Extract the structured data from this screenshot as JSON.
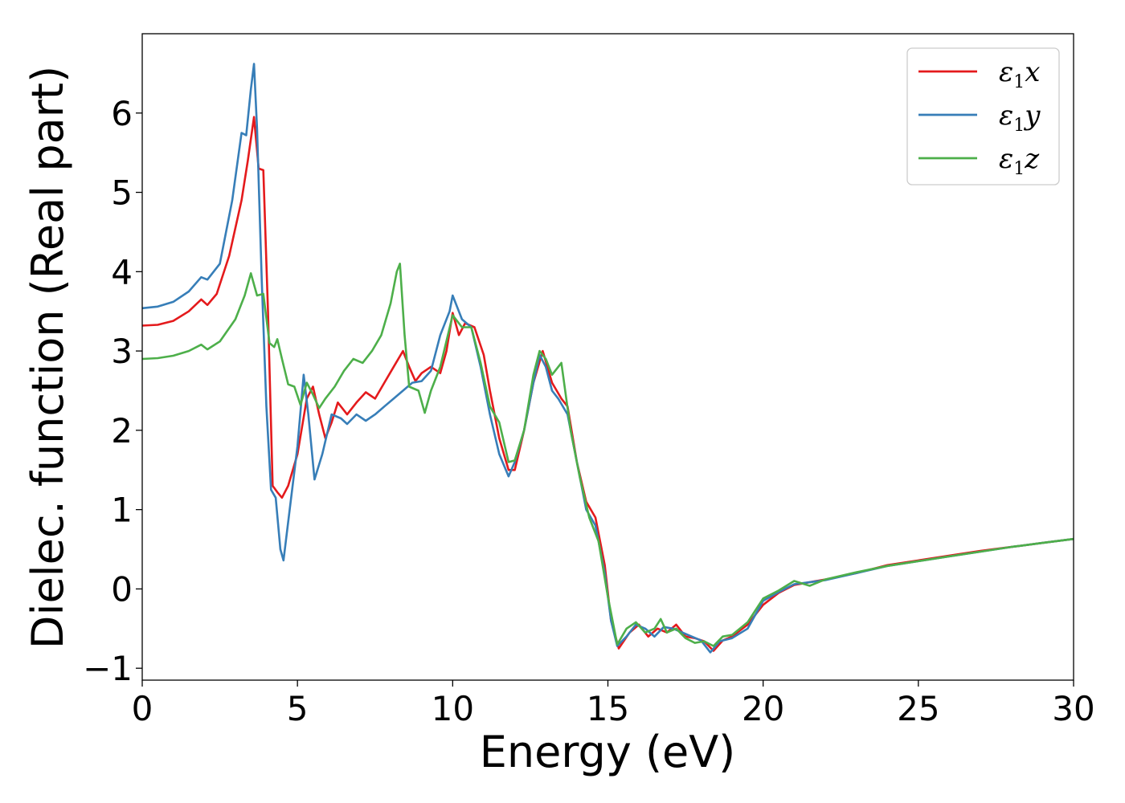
{
  "chart_data": {
    "type": "line",
    "xlabel": "Energy (eV)",
    "ylabel": "Dielec. function (Real part)",
    "xlim": [
      0,
      30
    ],
    "ylim": [
      -1.15,
      7.0
    ],
    "xticks": [
      0,
      5,
      10,
      15,
      20,
      25,
      30
    ],
    "xtick_labels": [
      "0",
      "5",
      "10",
      "15",
      "20",
      "25",
      "30"
    ],
    "yticks": [
      -1,
      0,
      1,
      2,
      3,
      4,
      5,
      6
    ],
    "ytick_labels": [
      "−1",
      "0",
      "1",
      "2",
      "3",
      "4",
      "5",
      "6"
    ],
    "grid": false,
    "legend_position": "top-right",
    "series": [
      {
        "name": "ε1x",
        "legend_symbol": "ε",
        "legend_sub": "1",
        "legend_suffix": "x",
        "color": "#e41a1c",
        "points": [
          [
            0,
            3.32
          ],
          [
            0.5,
            3.33
          ],
          [
            1.0,
            3.38
          ],
          [
            1.5,
            3.5
          ],
          [
            1.9,
            3.65
          ],
          [
            2.1,
            3.58
          ],
          [
            2.4,
            3.72
          ],
          [
            2.8,
            4.2
          ],
          [
            3.2,
            4.9
          ],
          [
            3.4,
            5.4
          ],
          [
            3.6,
            5.95
          ],
          [
            3.75,
            5.3
          ],
          [
            3.9,
            5.28
          ],
          [
            4.05,
            3.5
          ],
          [
            4.2,
            1.3
          ],
          [
            4.35,
            1.22
          ],
          [
            4.5,
            1.15
          ],
          [
            4.7,
            1.3
          ],
          [
            5.0,
            1.7
          ],
          [
            5.3,
            2.4
          ],
          [
            5.5,
            2.55
          ],
          [
            5.7,
            2.2
          ],
          [
            5.9,
            1.9
          ],
          [
            6.1,
            2.1
          ],
          [
            6.3,
            2.35
          ],
          [
            6.6,
            2.2
          ],
          [
            6.9,
            2.35
          ],
          [
            7.2,
            2.48
          ],
          [
            7.5,
            2.4
          ],
          [
            7.8,
            2.6
          ],
          [
            8.1,
            2.8
          ],
          [
            8.4,
            3.0
          ],
          [
            8.6,
            2.8
          ],
          [
            8.8,
            2.62
          ],
          [
            9.0,
            2.72
          ],
          [
            9.3,
            2.8
          ],
          [
            9.6,
            2.72
          ],
          [
            9.8,
            3.0
          ],
          [
            10.0,
            3.48
          ],
          [
            10.2,
            3.2
          ],
          [
            10.4,
            3.35
          ],
          [
            10.7,
            3.3
          ],
          [
            11.0,
            2.95
          ],
          [
            11.2,
            2.5
          ],
          [
            11.5,
            1.9
          ],
          [
            11.8,
            1.5
          ],
          [
            12.0,
            1.5
          ],
          [
            12.3,
            2.0
          ],
          [
            12.6,
            2.6
          ],
          [
            12.9,
            3.0
          ],
          [
            13.2,
            2.6
          ],
          [
            13.5,
            2.4
          ],
          [
            13.7,
            2.3
          ],
          [
            14.0,
            1.6
          ],
          [
            14.3,
            1.1
          ],
          [
            14.6,
            0.9
          ],
          [
            14.9,
            0.3
          ],
          [
            15.1,
            -0.4
          ],
          [
            15.35,
            -0.75
          ],
          [
            15.7,
            -0.55
          ],
          [
            16.0,
            -0.45
          ],
          [
            16.3,
            -0.6
          ],
          [
            16.6,
            -0.5
          ],
          [
            16.9,
            -0.55
          ],
          [
            17.2,
            -0.45
          ],
          [
            17.5,
            -0.6
          ],
          [
            17.8,
            -0.62
          ],
          [
            18.1,
            -0.66
          ],
          [
            18.4,
            -0.78
          ],
          [
            18.7,
            -0.65
          ],
          [
            19.0,
            -0.6
          ],
          [
            19.5,
            -0.45
          ],
          [
            20.0,
            -0.2
          ],
          [
            20.5,
            -0.05
          ],
          [
            21.0,
            0.05
          ],
          [
            22.0,
            0.12
          ],
          [
            23.0,
            0.2
          ],
          [
            24.0,
            0.3
          ],
          [
            25.0,
            0.36
          ],
          [
            26.0,
            0.42
          ],
          [
            27.0,
            0.48
          ],
          [
            28.0,
            0.53
          ],
          [
            29.0,
            0.58
          ],
          [
            30.0,
            0.63
          ]
        ]
      },
      {
        "name": "ε1y",
        "legend_symbol": "ε",
        "legend_sub": "1",
        "legend_suffix": "y",
        "color": "#377eb8",
        "points": [
          [
            0,
            3.54
          ],
          [
            0.5,
            3.56
          ],
          [
            1.0,
            3.62
          ],
          [
            1.5,
            3.75
          ],
          [
            1.9,
            3.93
          ],
          [
            2.1,
            3.9
          ],
          [
            2.5,
            4.1
          ],
          [
            2.9,
            4.9
          ],
          [
            3.2,
            5.75
          ],
          [
            3.35,
            5.72
          ],
          [
            3.5,
            6.3
          ],
          [
            3.6,
            6.62
          ],
          [
            3.7,
            5.8
          ],
          [
            3.85,
            3.9
          ],
          [
            4.0,
            2.3
          ],
          [
            4.15,
            1.25
          ],
          [
            4.3,
            1.15
          ],
          [
            4.45,
            0.5
          ],
          [
            4.55,
            0.36
          ],
          [
            4.75,
            1.0
          ],
          [
            5.0,
            1.8
          ],
          [
            5.2,
            2.7
          ],
          [
            5.35,
            2.2
          ],
          [
            5.55,
            1.38
          ],
          [
            5.8,
            1.7
          ],
          [
            6.1,
            2.2
          ],
          [
            6.4,
            2.15
          ],
          [
            6.6,
            2.08
          ],
          [
            6.9,
            2.2
          ],
          [
            7.2,
            2.12
          ],
          [
            7.5,
            2.2
          ],
          [
            7.8,
            2.3
          ],
          [
            8.1,
            2.4
          ],
          [
            8.4,
            2.5
          ],
          [
            8.7,
            2.6
          ],
          [
            9.0,
            2.62
          ],
          [
            9.3,
            2.75
          ],
          [
            9.6,
            3.2
          ],
          [
            9.9,
            3.5
          ],
          [
            10.0,
            3.7
          ],
          [
            10.3,
            3.4
          ],
          [
            10.6,
            3.3
          ],
          [
            10.9,
            2.8
          ],
          [
            11.2,
            2.2
          ],
          [
            11.5,
            1.7
          ],
          [
            11.8,
            1.42
          ],
          [
            12.0,
            1.6
          ],
          [
            12.3,
            2.0
          ],
          [
            12.6,
            2.6
          ],
          [
            12.8,
            2.95
          ],
          [
            13.0,
            2.8
          ],
          [
            13.2,
            2.5
          ],
          [
            13.4,
            2.4
          ],
          [
            13.7,
            2.2
          ],
          [
            14.0,
            1.6
          ],
          [
            14.3,
            1.0
          ],
          [
            14.6,
            0.8
          ],
          [
            14.9,
            0.2
          ],
          [
            15.1,
            -0.4
          ],
          [
            15.3,
            -0.72
          ],
          [
            15.6,
            -0.6
          ],
          [
            15.9,
            -0.45
          ],
          [
            16.2,
            -0.5
          ],
          [
            16.5,
            -0.6
          ],
          [
            16.8,
            -0.48
          ],
          [
            17.1,
            -0.5
          ],
          [
            17.4,
            -0.55
          ],
          [
            17.7,
            -0.6
          ],
          [
            18.0,
            -0.65
          ],
          [
            18.3,
            -0.8
          ],
          [
            18.6,
            -0.66
          ],
          [
            19.0,
            -0.62
          ],
          [
            19.5,
            -0.5
          ],
          [
            20.0,
            -0.15
          ],
          [
            20.5,
            -0.04
          ],
          [
            21.0,
            0.06
          ],
          [
            22.0,
            0.11
          ],
          [
            23.0,
            0.2
          ],
          [
            24.0,
            0.29
          ],
          [
            25.0,
            0.35
          ],
          [
            26.0,
            0.41
          ],
          [
            27.0,
            0.47
          ],
          [
            28.0,
            0.53
          ],
          [
            29.0,
            0.58
          ],
          [
            30.0,
            0.63
          ]
        ]
      },
      {
        "name": "ε1z",
        "legend_symbol": "ε",
        "legend_sub": "1",
        "legend_suffix": "z",
        "color": "#4daf4a",
        "points": [
          [
            0,
            2.9
          ],
          [
            0.5,
            2.91
          ],
          [
            1.0,
            2.94
          ],
          [
            1.5,
            3.0
          ],
          [
            1.9,
            3.08
          ],
          [
            2.1,
            3.02
          ],
          [
            2.5,
            3.12
          ],
          [
            3.0,
            3.4
          ],
          [
            3.3,
            3.7
          ],
          [
            3.5,
            3.98
          ],
          [
            3.7,
            3.7
          ],
          [
            3.9,
            3.72
          ],
          [
            4.1,
            3.1
          ],
          [
            4.25,
            3.05
          ],
          [
            4.35,
            3.15
          ],
          [
            4.5,
            2.9
          ],
          [
            4.7,
            2.58
          ],
          [
            4.9,
            2.55
          ],
          [
            5.1,
            2.32
          ],
          [
            5.3,
            2.6
          ],
          [
            5.5,
            2.45
          ],
          [
            5.7,
            2.28
          ],
          [
            5.9,
            2.4
          ],
          [
            6.2,
            2.55
          ],
          [
            6.5,
            2.75
          ],
          [
            6.8,
            2.9
          ],
          [
            7.1,
            2.85
          ],
          [
            7.4,
            3.0
          ],
          [
            7.7,
            3.2
          ],
          [
            8.0,
            3.6
          ],
          [
            8.2,
            4.0
          ],
          [
            8.3,
            4.1
          ],
          [
            8.45,
            3.2
          ],
          [
            8.6,
            2.55
          ],
          [
            8.9,
            2.5
          ],
          [
            9.1,
            2.22
          ],
          [
            9.3,
            2.5
          ],
          [
            9.6,
            2.8
          ],
          [
            10.0,
            3.45
          ],
          [
            10.3,
            3.3
          ],
          [
            10.6,
            3.3
          ],
          [
            10.9,
            2.85
          ],
          [
            11.2,
            2.3
          ],
          [
            11.5,
            2.1
          ],
          [
            11.8,
            1.6
          ],
          [
            12.0,
            1.62
          ],
          [
            12.3,
            2.0
          ],
          [
            12.6,
            2.7
          ],
          [
            12.8,
            3.0
          ],
          [
            13.0,
            2.9
          ],
          [
            13.2,
            2.7
          ],
          [
            13.5,
            2.85
          ],
          [
            13.8,
            2.0
          ],
          [
            14.1,
            1.4
          ],
          [
            14.4,
            0.9
          ],
          [
            14.7,
            0.6
          ],
          [
            15.0,
            -0.1
          ],
          [
            15.3,
            -0.7
          ],
          [
            15.6,
            -0.5
          ],
          [
            15.9,
            -0.42
          ],
          [
            16.2,
            -0.55
          ],
          [
            16.5,
            -0.5
          ],
          [
            16.7,
            -0.38
          ],
          [
            16.9,
            -0.55
          ],
          [
            17.2,
            -0.5
          ],
          [
            17.5,
            -0.62
          ],
          [
            17.8,
            -0.68
          ],
          [
            18.1,
            -0.66
          ],
          [
            18.4,
            -0.72
          ],
          [
            18.7,
            -0.6
          ],
          [
            19.0,
            -0.58
          ],
          [
            19.5,
            -0.42
          ],
          [
            20.0,
            -0.12
          ],
          [
            20.5,
            -0.02
          ],
          [
            21.0,
            0.1
          ],
          [
            21.5,
            0.04
          ],
          [
            22.0,
            0.12
          ],
          [
            23.0,
            0.21
          ],
          [
            24.0,
            0.29
          ],
          [
            25.0,
            0.35
          ],
          [
            26.0,
            0.41
          ],
          [
            27.0,
            0.47
          ],
          [
            28.0,
            0.53
          ],
          [
            29.0,
            0.58
          ],
          [
            30.0,
            0.63
          ]
        ]
      }
    ]
  }
}
